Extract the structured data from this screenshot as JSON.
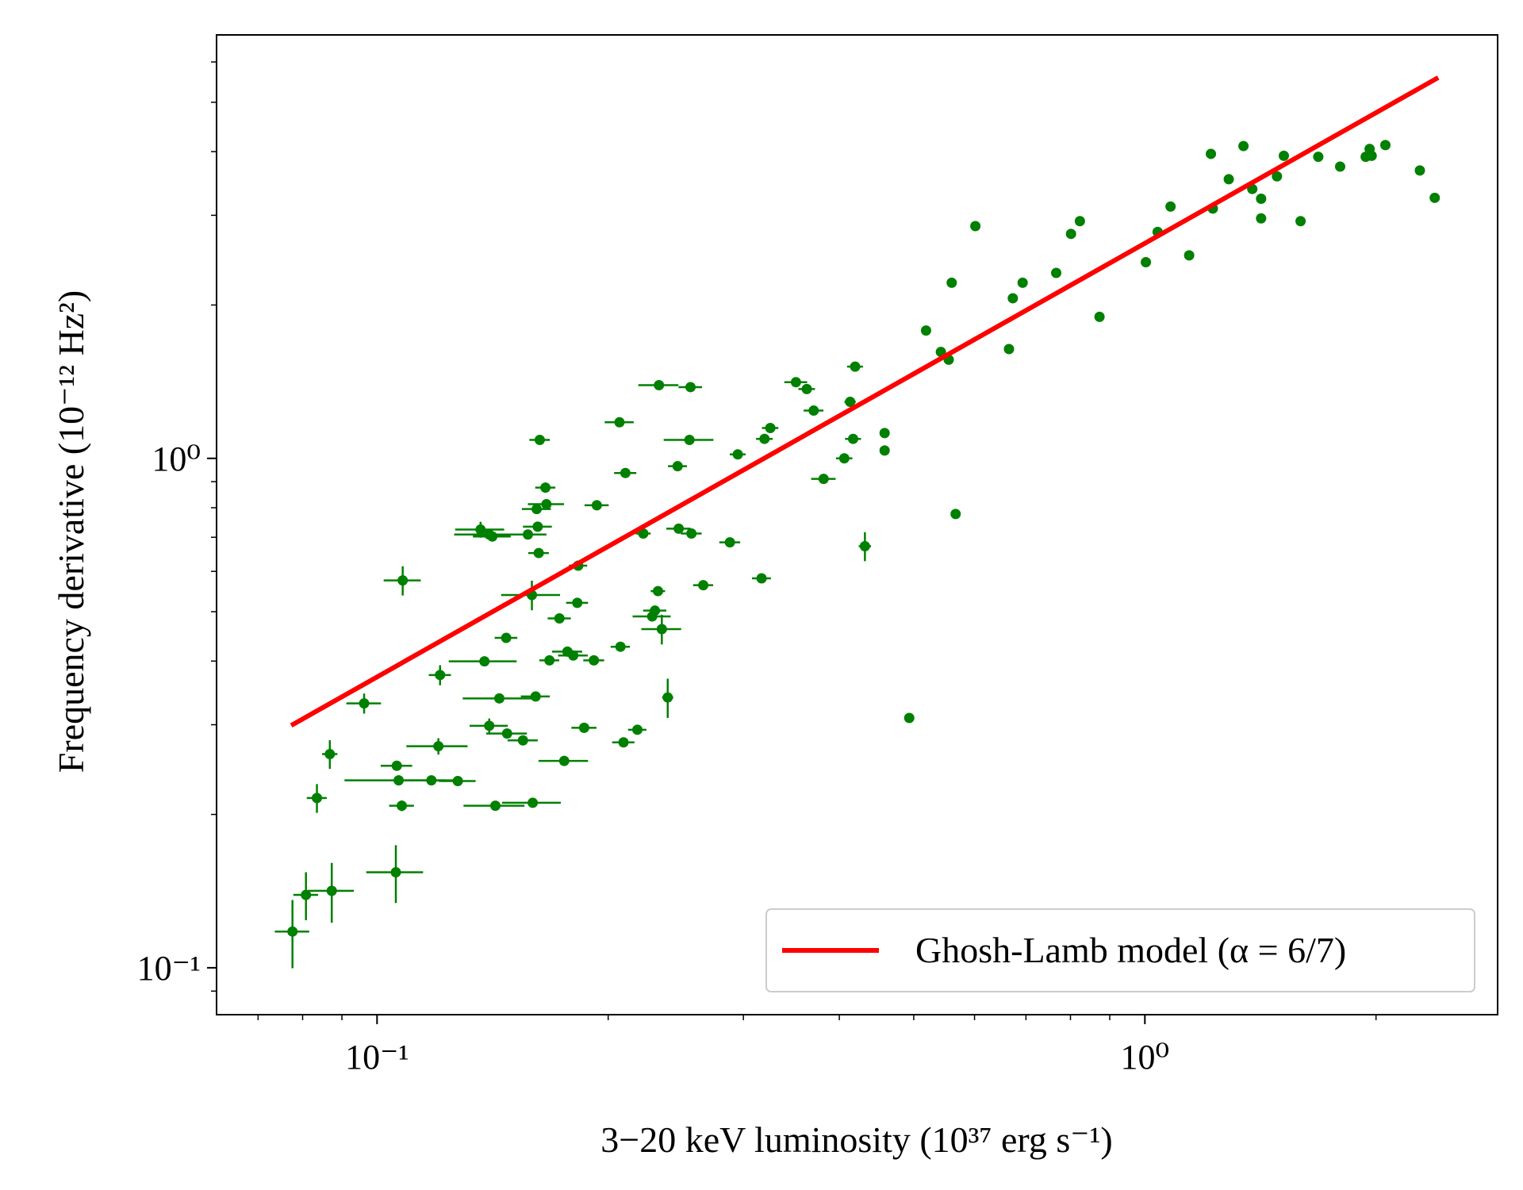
{
  "chart_data": {
    "type": "scatter",
    "x_label": "3−20 keV luminosity (10³⁷ erg s⁻¹)",
    "y_label": "Frequency derivative (10⁻¹² Hz²)",
    "xscale": "log",
    "yscale": "log",
    "xlim": [
      0.0618,
      2.88
    ],
    "ylim": [
      0.0809,
      6.78
    ],
    "xticks": [
      {
        "value": 0.1,
        "label": "10⁻¹"
      },
      {
        "value": 1,
        "label": "10⁰"
      }
    ],
    "yticks": [
      {
        "value": 0.1,
        "label": "10⁻¹"
      },
      {
        "value": 1,
        "label": "10⁰"
      }
    ],
    "xticks_minor": [
      0.07,
      0.08,
      0.09,
      0.2,
      0.3,
      0.4,
      0.5,
      0.6,
      0.7,
      0.8,
      0.9,
      2
    ],
    "yticks_minor": [
      0.09,
      0.2,
      0.3,
      0.4,
      0.5,
      0.6,
      0.7,
      0.8,
      0.9,
      2,
      3,
      4,
      5,
      6
    ],
    "legend": "lower right",
    "color": "#008000",
    "x": [
      0.0776,
      0.0808,
      0.0873,
      0.0835,
      0.0868,
      0.0962,
      0.108,
      0.1058,
      0.1061,
      0.1067,
      0.1077,
      0.1177,
      0.1274,
      0.1202,
      0.1208,
      0.138,
      0.1443,
      0.14,
      0.1477,
      0.1549,
      0.1426,
      0.1595,
      0.1473,
      0.1364,
      0.14,
      0.1413,
      0.1572,
      0.1619,
      0.1624,
      0.1591,
      0.1609,
      0.1677,
      0.1753,
      0.1728,
      0.177,
      0.1801,
      0.1823,
      0.1861,
      0.1916,
      0.1828,
      0.1614,
      0.1657,
      0.1662,
      0.1629,
      0.1933,
      0.2075,
      0.2094,
      0.2183,
      0.2069,
      0.2106,
      0.2222,
      0.2282,
      0.2301,
      0.2322,
      0.2349,
      0.2391,
      0.2463,
      0.2471,
      0.2567,
      0.2552,
      0.2329,
      0.256,
      0.266,
      0.2881,
      0.295,
      0.3168,
      0.3196,
      0.3252,
      0.3512,
      0.3628,
      0.3704,
      0.3816,
      0.406,
      0.4169,
      0.4132,
      0.4194,
      0.4319,
      0.4582,
      0.4582,
      0.4933,
      0.5188,
      0.5424,
      0.5553,
      0.5603,
      0.5669,
      0.6015,
      0.6653,
      0.673,
      0.6931,
      0.7665,
      0.8013,
      0.8229,
      0.8728,
      1.003,
      1.039,
      1.08,
      1.142,
      1.219,
      1.226,
      1.286,
      1.344,
      1.38,
      1.417,
      1.417,
      1.486,
      1.517,
      1.595,
      1.682,
      1.796,
      1.939,
      1.962,
      1.974,
      2.057,
      2.281,
      2.385
    ],
    "values": [
      0.1178,
      0.139,
      0.1416,
      0.2154,
      0.2627,
      0.3304,
      0.576,
      0.154,
      0.2492,
      0.2333,
      0.208,
      0.2333,
      0.2326,
      0.2722,
      0.3756,
      0.3995,
      0.3379,
      0.2986,
      0.2883,
      0.2795,
      0.208,
      0.2108,
      0.4442,
      0.7247,
      0.7088,
      0.7025,
      0.7088,
      0.7344,
      0.6519,
      0.5392,
      0.3409,
      0.4013,
      0.2547,
      0.4851,
      0.4175,
      0.4102,
      0.5205,
      0.2959,
      0.4013,
      0.6157,
      0.7952,
      0.8762,
      0.8128,
      1.087,
      0.809,
      0.4268,
      0.277,
      0.2933,
      1.177,
      0.936,
      0.712,
      0.4894,
      0.5025,
      0.5488,
      0.4622,
      0.3394,
      0.9653,
      0.7278,
      0.712,
      1.087,
      1.392,
      1.38,
      0.5636,
      0.6842,
      1.018,
      0.5814,
      1.092,
      1.147,
      1.411,
      1.368,
      1.241,
      0.9115,
      1.0,
      1.092,
      1.291,
      1.514,
      0.6723,
      1.121,
      1.036,
      0.3093,
      1.782,
      1.618,
      1.562,
      2.212,
      0.7777,
      2.857,
      1.639,
      2.062,
      2.212,
      2.312,
      2.758,
      2.922,
      1.896,
      2.427,
      2.783,
      3.121,
      2.503,
      3.96,
      3.093,
      3.531,
      4.103,
      3.379,
      3.233,
      2.959,
      3.578,
      3.926,
      2.922,
      3.908,
      3.739,
      3.908,
      4.049,
      3.926,
      4.121,
      3.674,
      3.247
    ],
    "xerr": [
      0.004,
      0.003,
      0.006,
      0.0025,
      0.002,
      0.005,
      0.006,
      0.009,
      0.005,
      0.016,
      0.004,
      0.009,
      0.007,
      0.011,
      0.004,
      0.014,
      0.015,
      0.008,
      0.009,
      0.007,
      0.013,
      0.014,
      0.005,
      0.01,
      0.014,
      0.008,
      0.009,
      0.007,
      0.005,
      0.014,
      0.007,
      0.005,
      0.013,
      0.006,
      0.008,
      0.008,
      0.006,
      0.007,
      0.006,
      0.005,
      0.007,
      0.005,
      0.009,
      0.005,
      0.007,
      0.006,
      0.007,
      0.006,
      0.009,
      0.007,
      0.005,
      0.013,
      0.008,
      0.005,
      0.014,
      0.004,
      0.007,
      0.009,
      0.008,
      0.019,
      0.014,
      0.009,
      0.008,
      0.009,
      0.007,
      0.009,
      0.008,
      0.008,
      0.012,
      0.009,
      0.011,
      0.014,
      0.01,
      0.01,
      0.007,
      0.01,
      0.008,
      0,
      0,
      0,
      0,
      0,
      0,
      0,
      0,
      0,
      0,
      0,
      0,
      0,
      0,
      0,
      0,
      0,
      0,
      0,
      0,
      0,
      0,
      0,
      0,
      0,
      0,
      0,
      0,
      0,
      0,
      0,
      0,
      0,
      0,
      0,
      0,
      0,
      0
    ],
    "yerr": [
      0.018,
      0.015,
      0.019,
      0.014,
      0.017,
      0.015,
      0.038,
      0.02,
      0.005,
      0.005,
      0.005,
      0,
      0,
      0.01,
      0.017,
      0,
      0,
      0.01,
      0,
      0,
      0,
      0,
      0,
      0.026,
      0,
      0,
      0,
      0,
      0,
      0.036,
      0,
      0,
      0,
      0,
      0,
      0,
      0,
      0,
      0,
      0,
      0,
      0,
      0,
      0,
      0,
      0,
      0,
      0,
      0,
      0,
      0,
      0,
      0,
      0,
      0.031,
      0.03,
      0,
      0,
      0,
      0,
      0,
      0,
      0,
      0,
      0,
      0,
      0,
      0,
      0,
      0,
      0,
      0,
      0,
      0,
      0,
      0,
      0.044,
      0,
      0,
      0,
      0,
      0,
      0,
      0,
      0,
      0,
      0,
      0,
      0,
      0,
      0,
      0,
      0,
      0,
      0,
      0,
      0,
      0,
      0,
      0,
      0,
      0,
      0,
      0,
      0,
      0,
      0,
      0,
      0,
      0,
      0,
      0,
      0,
      0,
      0
    ],
    "model": {
      "name": "Ghosh-Lamb model (α = 6/7)",
      "color": "#ff0000",
      "x": [
        0.0773,
        2.41
      ],
      "values": [
        0.299,
        5.59
      ]
    }
  }
}
